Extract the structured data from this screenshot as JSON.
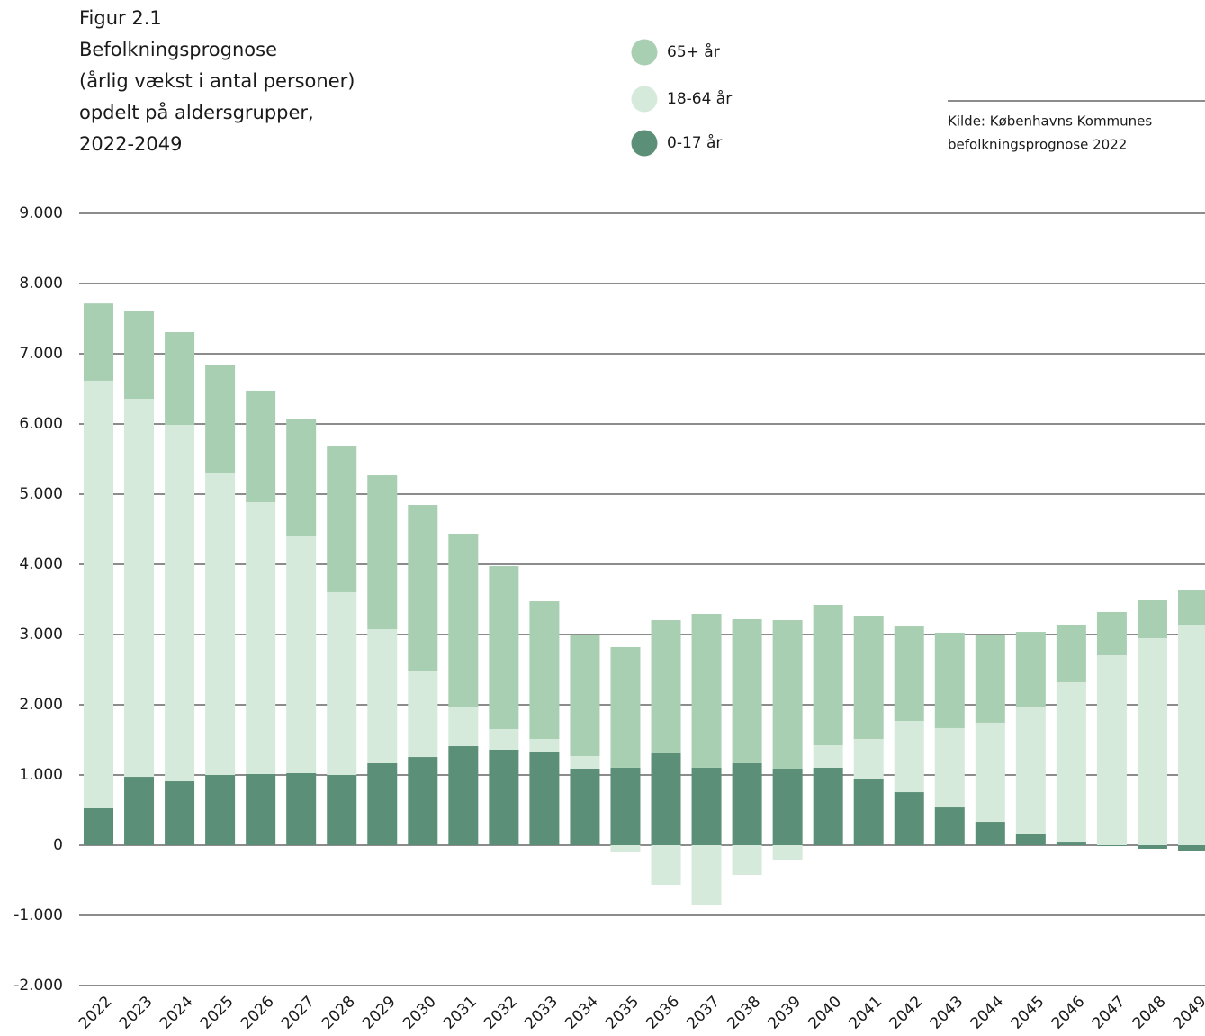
{
  "chart_data": {
    "type": "bar",
    "stacked": true,
    "title": [
      "Figur 2.1",
      "Befolkningsprognose",
      "(årlig vækst i antal personer)",
      "opdelt på aldersgrupper,",
      "2022-2049"
    ],
    "source": [
      "Kilde: Københavns Kommunes",
      "befolkningsprognose 2022"
    ],
    "categories": [
      "2022",
      "2023",
      "2024",
      "2025",
      "2026",
      "2027",
      "2028",
      "2029",
      "2030",
      "2031",
      "2032",
      "2033",
      "2034",
      "2035",
      "2036",
      "2037",
      "2038",
      "2039",
      "2040",
      "2041",
      "2042",
      "2043",
      "2044",
      "2045",
      "2046",
      "2047",
      "2048",
      "2049"
    ],
    "series": [
      {
        "name": "0-17 år",
        "color": "#5b8f77",
        "values": [
          526,
          974,
          910,
          1000,
          1013,
          1026,
          1000,
          1167,
          1256,
          1410,
          1359,
          1333,
          1090,
          1103,
          1308,
          1103,
          1167,
          1090,
          1103,
          949,
          756,
          538,
          333,
          154,
          38,
          -13,
          -51,
          -77
        ]
      },
      {
        "name": "18-64 år",
        "color": "#d6eadc",
        "values": [
          6090,
          5385,
          5077,
          4308,
          3872,
          3371,
          2603,
          1910,
          1231,
          564,
          295,
          180,
          179,
          -103,
          -564,
          -859,
          -423,
          -218,
          320,
          564,
          1013,
          1129,
          1411,
          1808,
          2283,
          2705,
          2949,
          3141
        ]
      },
      {
        "name": "65+ år",
        "color": "#a9cfb2",
        "values": [
          1100,
          1244,
          1321,
          1538,
          1590,
          1680,
          2076,
          2192,
          2359,
          2462,
          2320,
          1961,
          1718,
          1718,
          1897,
          2192,
          2051,
          2115,
          2000,
          1756,
          1346,
          1359,
          1256,
          1076,
          820,
          616,
          538,
          487
        ]
      }
    ],
    "ylim": [
      -2000,
      9000
    ],
    "yticks": [
      {
        "value": -2000,
        "label": "-2.000"
      },
      {
        "value": -1000,
        "label": "-1.000"
      },
      0,
      {
        "value": 1000,
        "label": "1.000"
      },
      {
        "value": 2000,
        "label": "2.000"
      },
      {
        "value": 3000,
        "label": "3.000"
      },
      {
        "value": 4000,
        "label": "4.000"
      },
      {
        "value": 5000,
        "label": "5.000"
      },
      {
        "value": 6000,
        "label": "6.000"
      },
      {
        "value": 7000,
        "label": "7.000"
      },
      {
        "value": 8000,
        "label": "8.000"
      },
      {
        "value": 9000,
        "label": "9.000"
      }
    ],
    "grid": true
  }
}
